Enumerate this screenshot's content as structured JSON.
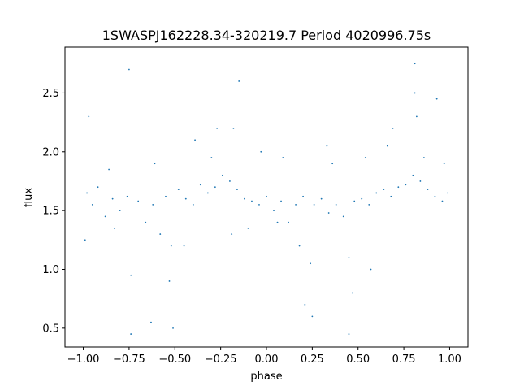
{
  "chart_data": {
    "type": "scatter",
    "title": "1SWASPJ162228.34-320219.7 Period 4020996.75s",
    "xlabel": "phase",
    "ylabel": "flux",
    "xlim": [
      -1.1,
      1.1
    ],
    "ylim": [
      0.34,
      2.89
    ],
    "x_ticks": [
      -1.0,
      -0.75,
      -0.5,
      -0.25,
      0.0,
      0.25,
      0.5,
      0.75,
      1.0
    ],
    "x_tick_labels": [
      "−1.00",
      "−0.75",
      "−0.50",
      "−0.25",
      "0.00",
      "0.25",
      "0.50",
      "0.75",
      "1.00"
    ],
    "y_ticks": [
      0.5,
      1.0,
      1.5,
      2.0,
      2.5
    ],
    "y_tick_labels": [
      "0.5",
      "1.0",
      "1.5",
      "2.0",
      "2.5"
    ],
    "grid": false,
    "marker_color": "#1f77b4",
    "series": [
      {
        "x": [
          -0.98,
          -0.95,
          -0.92,
          -0.88,
          -0.84,
          -0.8,
          -0.76,
          -0.74,
          -0.7,
          -0.66,
          -0.62,
          -0.58,
          -0.55,
          -0.52,
          -0.48,
          -0.44,
          -0.4,
          -0.36,
          -0.32,
          -0.28,
          -0.24,
          -0.2,
          -0.18,
          -0.16,
          -0.12,
          -0.08,
          -0.04,
          0.0,
          0.04,
          0.08,
          0.12,
          0.16,
          0.2,
          0.24,
          0.26,
          0.3,
          0.34,
          0.38,
          0.42,
          0.45,
          0.48,
          0.52,
          0.56,
          0.6,
          0.64,
          0.68,
          0.72,
          0.76,
          0.8,
          0.82,
          0.84,
          0.88,
          0.92,
          0.96,
          0.99,
          -0.97,
          -0.86,
          -0.75,
          -0.63,
          -0.51,
          -0.39,
          -0.27,
          -0.15,
          -0.03,
          0.09,
          0.21,
          0.33,
          0.45,
          0.57,
          0.69,
          0.81,
          0.93,
          -0.74,
          -0.53,
          -0.19,
          0.25,
          0.47,
          0.81,
          -0.99,
          -0.83,
          -0.61,
          -0.45,
          -0.3,
          -0.1,
          0.06,
          0.18,
          0.36,
          0.54,
          0.66,
          0.86,
          0.97
        ],
        "y": [
          1.65,
          1.55,
          1.7,
          1.45,
          1.6,
          1.5,
          1.62,
          0.95,
          1.58,
          1.4,
          1.55,
          1.3,
          1.62,
          1.2,
          1.68,
          1.6,
          1.55,
          1.72,
          1.65,
          1.7,
          1.8,
          1.75,
          2.2,
          1.68,
          1.6,
          1.58,
          1.55,
          1.62,
          1.5,
          1.58,
          1.4,
          1.55,
          1.62,
          1.05,
          1.55,
          1.6,
          1.48,
          1.55,
          1.45,
          1.1,
          1.58,
          1.6,
          1.55,
          1.65,
          1.68,
          1.62,
          1.7,
          1.72,
          1.8,
          2.3,
          1.75,
          1.68,
          1.62,
          1.58,
          1.65,
          2.3,
          1.85,
          2.7,
          0.55,
          0.5,
          2.1,
          2.2,
          2.6,
          2.0,
          1.95,
          0.7,
          2.05,
          0.45,
          1.0,
          2.2,
          2.75,
          2.45,
          0.45,
          0.9,
          1.3,
          0.6,
          0.8,
          2.5,
          1.25,
          1.35,
          1.9,
          1.2,
          1.95,
          1.35,
          1.4,
          1.2,
          1.9,
          1.95,
          2.05,
          1.95,
          1.9
        ]
      }
    ]
  }
}
